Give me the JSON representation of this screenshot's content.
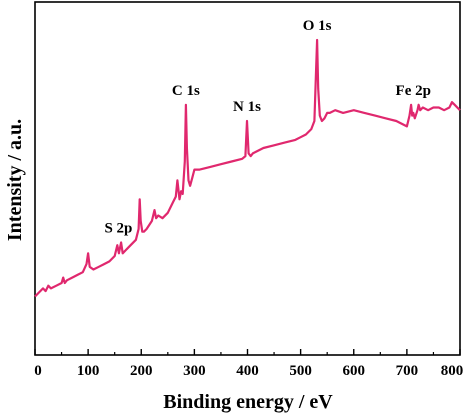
{
  "chart_data": {
    "type": "line",
    "title": "",
    "xlabel": "Binding energy / eV",
    "ylabel": "Intensity / a.u.",
    "xlim": [
      0,
      800
    ],
    "x_ticks": [
      "0",
      "100",
      "200",
      "300",
      "400",
      "500",
      "600",
      "700",
      "800"
    ],
    "y_ticks_labeled": false,
    "grid": false,
    "legend": "none",
    "series": [
      {
        "color": "#e0286e",
        "x": [
          0,
          10,
          15,
          20,
          25,
          30,
          40,
          50,
          53,
          56,
          60,
          70,
          80,
          90,
          97,
          100,
          103,
          110,
          120,
          130,
          140,
          150,
          155,
          158,
          162,
          165,
          170,
          180,
          190,
          195,
          197,
          199,
          202,
          205,
          210,
          220,
          225,
          228,
          232,
          240,
          250,
          260,
          265,
          268,
          272,
          275,
          278,
          282,
          284,
          286,
          289,
          292,
          296,
          300,
          305,
          310,
          330,
          350,
          370,
          390,
          396,
          399,
          402,
          406,
          410,
          430,
          450,
          470,
          490,
          500,
          510,
          520,
          526,
          529,
          531,
          533,
          536,
          540,
          545,
          550,
          555,
          565,
          580,
          600,
          620,
          640,
          660,
          680,
          700,
          705,
          708,
          710,
          712,
          715,
          720,
          722,
          725,
          730,
          740,
          750,
          760,
          770,
          780,
          785,
          790,
          795,
          800
        ],
        "y": [
          0.05,
          0.07,
          0.08,
          0.07,
          0.09,
          0.08,
          0.09,
          0.1,
          0.12,
          0.1,
          0.11,
          0.12,
          0.13,
          0.14,
          0.17,
          0.21,
          0.16,
          0.15,
          0.16,
          0.17,
          0.18,
          0.2,
          0.24,
          0.21,
          0.25,
          0.21,
          0.22,
          0.24,
          0.26,
          0.3,
          0.41,
          0.33,
          0.29,
          0.29,
          0.3,
          0.33,
          0.37,
          0.34,
          0.35,
          0.34,
          0.36,
          0.4,
          0.42,
          0.48,
          0.41,
          0.44,
          0.43,
          0.55,
          0.76,
          0.6,
          0.48,
          0.46,
          0.49,
          0.52,
          0.52,
          0.52,
          0.53,
          0.54,
          0.55,
          0.56,
          0.57,
          0.7,
          0.58,
          0.57,
          0.58,
          0.6,
          0.61,
          0.62,
          0.63,
          0.64,
          0.65,
          0.67,
          0.7,
          0.88,
          1.0,
          0.82,
          0.72,
          0.7,
          0.71,
          0.73,
          0.73,
          0.74,
          0.73,
          0.74,
          0.73,
          0.72,
          0.71,
          0.7,
          0.68,
          0.72,
          0.76,
          0.72,
          0.73,
          0.71,
          0.74,
          0.76,
          0.74,
          0.75,
          0.74,
          0.75,
          0.75,
          0.74,
          0.75,
          0.77,
          0.76,
          0.75,
          0.74
        ]
      }
    ],
    "annotations": [
      {
        "text": "S 2p",
        "x": 157
      },
      {
        "text": "C 1s",
        "x": 284
      },
      {
        "text": "N 1s",
        "x": 399
      },
      {
        "text": "O 1s",
        "x": 531
      },
      {
        "text": "Fe 2p",
        "x": 712
      }
    ]
  }
}
